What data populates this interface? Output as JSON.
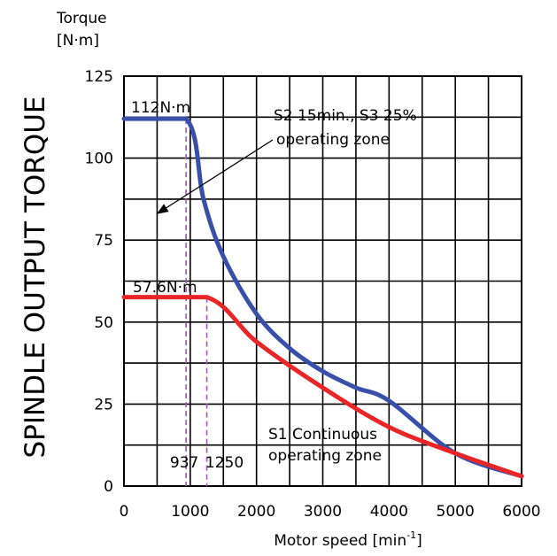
{
  "chart_data": {
    "type": "line",
    "title": "",
    "side_label": "SPINDLE OUTPUT TORQUE",
    "ylabel_line1": "Torque",
    "ylabel_line2": "[N·m]",
    "xlabel_prefix": "Motor speed [min",
    "xlabel_sup": "-1",
    "xlabel_suffix": "]",
    "xlim": [
      0,
      6000
    ],
    "ylim": [
      0,
      125
    ],
    "x_ticks": [
      0,
      1000,
      2000,
      3000,
      4000,
      5000,
      6000
    ],
    "y_ticks": [
      0,
      25,
      50,
      75,
      100,
      125
    ],
    "grid": true,
    "series": [
      {
        "key": "s2",
        "color": "#3a4fa8",
        "points": [
          [
            0,
            112
          ],
          [
            937,
            112
          ],
          [
            1200,
            87.5
          ],
          [
            1500,
            70
          ],
          [
            2000,
            52.5
          ],
          [
            2500,
            42
          ],
          [
            3000,
            35
          ],
          [
            3500,
            30
          ],
          [
            4000,
            26
          ],
          [
            5000,
            10
          ],
          [
            6000,
            3
          ]
        ]
      },
      {
        "key": "s1",
        "color": "#e8262a",
        "points": [
          [
            0,
            57.6
          ],
          [
            1250,
            57.6
          ],
          [
            2000,
            44
          ],
          [
            3000,
            30
          ],
          [
            4000,
            18
          ],
          [
            5000,
            10
          ],
          [
            6000,
            3
          ]
        ]
      }
    ],
    "markers": [
      {
        "x": 937,
        "label": "937"
      },
      {
        "x": 1250,
        "label": "1250"
      }
    ],
    "annotations": {
      "s2_value": "112N·m",
      "s1_value": "57.6N·m",
      "s2_zone_line1": "S2 15min., S3 25%",
      "s2_zone_line2": "operating zone",
      "s1_zone_line1": "S1 Continuous",
      "s1_zone_line2": "operating zone"
    },
    "marker_color": "#9b59b6"
  }
}
